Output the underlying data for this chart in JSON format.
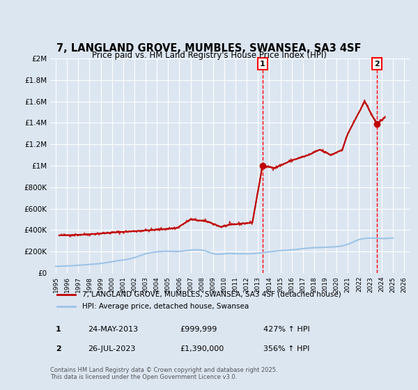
{
  "title": "7, LANGLAND GROVE, MUMBLES, SWANSEA, SA3 4SF",
  "subtitle": "Price paid vs. HM Land Registry's House Price Index (HPI)",
  "title_fontsize": 11,
  "subtitle_fontsize": 9,
  "bg_color": "#dce6f1",
  "plot_bg_color": "#dce6f1",
  "grid_color": "#ffffff",
  "legend_label_red": "7, LANGLAND GROVE, MUMBLES, SWANSEA, SA3 4SF (detached house)",
  "legend_label_blue": "HPI: Average price, detached house, Swansea",
  "red_color": "#c00000",
  "blue_color": "#9dc3e6",
  "marker_color_red": "#c00000",
  "vline_color": "#ff0000",
  "annotation1_text": "1",
  "annotation2_text": "2",
  "annotation1_date": "24-MAY-2013",
  "annotation1_price": "£999,999",
  "annotation1_hpi": "427% ↑ HPI",
  "annotation2_date": "26-JUL-2023",
  "annotation2_price": "£1,390,000",
  "annotation2_hpi": "356% ↑ HPI",
  "footer": "Contains HM Land Registry data © Crown copyright and database right 2025.\nThis data is licensed under the Open Government Licence v3.0.",
  "ylim": [
    0,
    2000000
  ],
  "yticks": [
    0,
    200000,
    400000,
    600000,
    800000,
    1000000,
    1200000,
    1400000,
    1600000,
    1800000,
    2000000
  ],
  "ytick_labels": [
    "£0",
    "£200K",
    "£400K",
    "£600K",
    "£800K",
    "£1M",
    "£1.2M",
    "£1.4M",
    "£1.6M",
    "£1.8M",
    "£2M"
  ],
  "xmin": 1994.5,
  "xmax": 2026.5,
  "vline1_x": 2013.4,
  "vline2_x": 2023.57,
  "sale1_x": 2013.4,
  "sale1_y": 999999,
  "sale2_x": 2023.57,
  "sale2_y": 1390000,
  "hpi_years": [
    1995,
    1995.25,
    1995.5,
    1995.75,
    1996,
    1996.25,
    1996.5,
    1996.75,
    1997,
    1997.25,
    1997.5,
    1997.75,
    1998,
    1998.25,
    1998.5,
    1998.75,
    1999,
    1999.25,
    1999.5,
    1999.75,
    2000,
    2000.25,
    2000.5,
    2000.75,
    2001,
    2001.25,
    2001.5,
    2001.75,
    2002,
    2002.25,
    2002.5,
    2002.75,
    2003,
    2003.25,
    2003.5,
    2003.75,
    2004,
    2004.25,
    2004.5,
    2004.75,
    2005,
    2005.25,
    2005.5,
    2005.75,
    2006,
    2006.25,
    2006.5,
    2006.75,
    2007,
    2007.25,
    2007.5,
    2007.75,
    2008,
    2008.25,
    2008.5,
    2008.75,
    2009,
    2009.25,
    2009.5,
    2009.75,
    2010,
    2010.25,
    2010.5,
    2010.75,
    2011,
    2011.25,
    2011.5,
    2011.75,
    2012,
    2012.25,
    2012.5,
    2012.75,
    2013,
    2013.25,
    2013.5,
    2013.75,
    2014,
    2014.25,
    2014.5,
    2014.75,
    2015,
    2015.25,
    2015.5,
    2015.75,
    2016,
    2016.25,
    2016.5,
    2016.75,
    2017,
    2017.25,
    2017.5,
    2017.75,
    2018,
    2018.25,
    2018.5,
    2018.75,
    2019,
    2019.25,
    2019.5,
    2019.75,
    2020,
    2020.25,
    2020.5,
    2020.75,
    2021,
    2021.25,
    2021.5,
    2021.75,
    2022,
    2022.25,
    2022.5,
    2022.75,
    2023,
    2023.25,
    2023.5,
    2023.75,
    2024,
    2024.25,
    2024.5,
    2024.75,
    2025
  ],
  "hpi_values": [
    62000,
    63000,
    64000,
    65000,
    66000,
    67000,
    68000,
    70000,
    72000,
    74000,
    76000,
    78000,
    80000,
    82000,
    84000,
    86000,
    89000,
    93000,
    97000,
    101000,
    105000,
    110000,
    115000,
    118000,
    121000,
    125000,
    130000,
    136000,
    143000,
    152000,
    162000,
    171000,
    179000,
    185000,
    190000,
    194000,
    197000,
    200000,
    202000,
    203000,
    203000,
    202000,
    202000,
    201000,
    202000,
    204000,
    207000,
    210000,
    213000,
    215000,
    216000,
    215000,
    213000,
    208000,
    200000,
    190000,
    181000,
    176000,
    175000,
    177000,
    179000,
    182000,
    183000,
    182000,
    181000,
    180000,
    180000,
    180000,
    179000,
    180000,
    181000,
    183000,
    185000,
    188000,
    191000,
    194000,
    197000,
    200000,
    203000,
    206000,
    208000,
    210000,
    212000,
    214000,
    216000,
    218000,
    221000,
    224000,
    227000,
    230000,
    232000,
    234000,
    236000,
    237000,
    238000,
    239000,
    240000,
    241000,
    242000,
    244000,
    246000,
    249000,
    253000,
    260000,
    268000,
    278000,
    290000,
    302000,
    312000,
    318000,
    322000,
    324000,
    325000,
    325000,
    324000,
    323000,
    322000,
    322000,
    323000,
    325000,
    327000
  ],
  "property_years": [
    1995.3,
    1997.8,
    2000.5,
    2003.5,
    2005.8,
    2007.0,
    2008.5,
    2009.7,
    2010.5,
    2011.5,
    2012.5,
    2013.4,
    2014.5,
    2016.0,
    2017.5,
    2018.5,
    2019.5,
    2020.5,
    2021.0,
    2021.5,
    2022.5,
    2023.57,
    2024.3
  ],
  "property_values": [
    350000,
    360000,
    380000,
    400000,
    420000,
    500000,
    480000,
    430000,
    450000,
    460000,
    470000,
    999999,
    980000,
    1050000,
    1100000,
    1150000,
    1100000,
    1150000,
    1300000,
    1400000,
    1600000,
    1390000,
    1450000
  ]
}
